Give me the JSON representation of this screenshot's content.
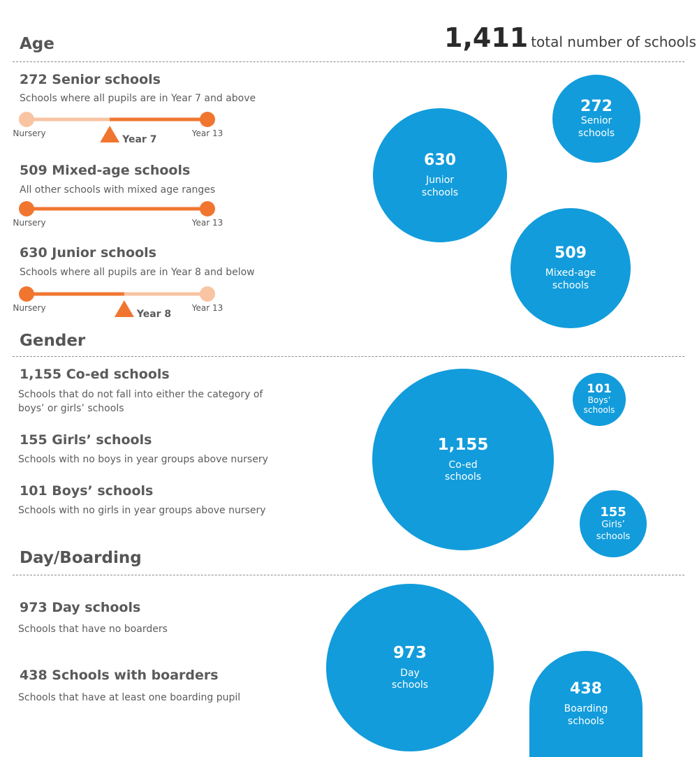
{
  "total": {
    "value": "1,411",
    "label": "total number of schools"
  },
  "sections": {
    "age": {
      "title": "Age",
      "items": [
        {
          "title": "272 Senior schools",
          "desc": "Schools where all pupils are in Year 7 and above",
          "scale": {
            "start": "Nursery",
            "end": "Year 13",
            "marker": "Year 7",
            "range_start": 0.46,
            "range_end": 1.0
          }
        },
        {
          "title": "509 Mixed-age schools",
          "desc": "All other schools with mixed age ranges",
          "scale": {
            "start": "Nursery",
            "end": "Year 13",
            "range_start": 0.0,
            "range_end": 1.0
          }
        },
        {
          "title": "630 Junior schools",
          "desc": "Schools where all pupils are in Year 8 and below",
          "scale": {
            "start": "Nursery",
            "end": "Year 13",
            "marker": "Year 8",
            "range_start": 0.0,
            "range_end": 0.54
          }
        }
      ]
    },
    "gender": {
      "title": "Gender",
      "items": [
        {
          "title": "1,155 Co-ed schools",
          "desc": "Schools that do not fall into either the category of boys’ or girls’ schools"
        },
        {
          "title": "155 Girls’ schools",
          "desc": "Schools with no boys in year groups above nursery"
        },
        {
          "title": "101 Boys’ schools",
          "desc": "Schools with no girls in year groups above nursery"
        }
      ]
    },
    "day": {
      "title": "Day/Boarding",
      "items": [
        {
          "title": "973 Day schools",
          "desc": "Schools that have no boarders"
        },
        {
          "title": "438 Schools with boarders",
          "desc": "Schools that have at least one boarding pupil"
        }
      ]
    }
  },
  "colors": {
    "bubble": "#129cdb",
    "range_active": "#f07630",
    "range_inactive": "#f8c4a2"
  },
  "chart_data": [
    {
      "type": "bubble",
      "group": "Age",
      "series": [
        {
          "name": "Senior schools",
          "value": 272,
          "value_label": "272",
          "label": "Senior schools"
        },
        {
          "name": "Junior schools",
          "value": 630,
          "value_label": "630",
          "label": "Junior schools"
        },
        {
          "name": "Mixed-age schools",
          "value": 509,
          "value_label": "509",
          "label": "Mixed-age schools"
        }
      ]
    },
    {
      "type": "bubble",
      "group": "Gender",
      "series": [
        {
          "name": "Co-ed schools",
          "value": 1155,
          "value_label": "1,155",
          "label": "Co-ed schools"
        },
        {
          "name": "Boys’ schools",
          "value": 101,
          "value_label": "101",
          "label": "Boys’ schools"
        },
        {
          "name": "Girls’ schools",
          "value": 155,
          "value_label": "155",
          "label": "Girls’ schools"
        }
      ]
    },
    {
      "type": "bubble",
      "group": "Day/Boarding",
      "series": [
        {
          "name": "Day schools",
          "value": 973,
          "value_label": "973",
          "label": "Day schools"
        },
        {
          "name": "Boarding schools",
          "value": 438,
          "value_label": "438",
          "label": "Boarding schools"
        }
      ]
    }
  ]
}
